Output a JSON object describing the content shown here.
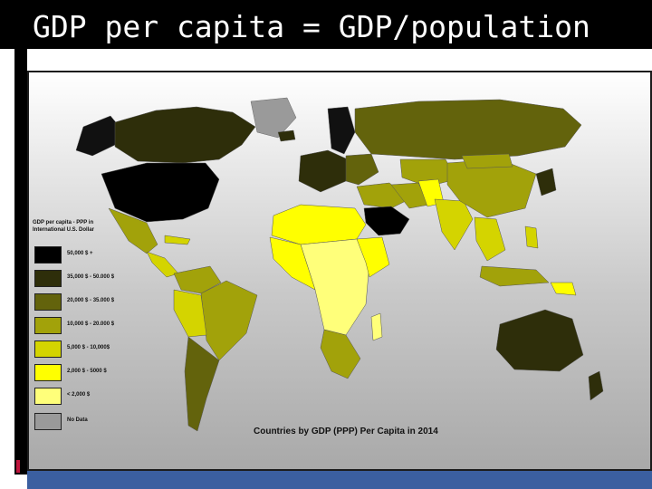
{
  "slide": {
    "title": "GDP per capita = GDP/population"
  },
  "map": {
    "caption": "Countries by GDP (PPP) Per Capita in 2014",
    "legend": {
      "title_line1": "GDP per capita - PPP in",
      "title_line2": "International U.S. Dollar",
      "classes": [
        {
          "label": "50,000 $ +",
          "color": "#000000"
        },
        {
          "label": "35,000 $ - 50.000 $",
          "color": "#2e2e0a"
        },
        {
          "label": "20,000 $ - 35.000 $",
          "color": "#63630c"
        },
        {
          "label": "10,000 $ - 20.000 $",
          "color": "#a2a20a"
        },
        {
          "label": "5,000 $ - 10,000$",
          "color": "#d4d400"
        },
        {
          "label": "2,000 $ - 5000 $",
          "color": "#ffff00"
        },
        {
          "label": "< 2,000 $",
          "color": "#ffff7a"
        },
        {
          "label": "No Data",
          "color": "#9a9a9a"
        }
      ]
    }
  }
}
